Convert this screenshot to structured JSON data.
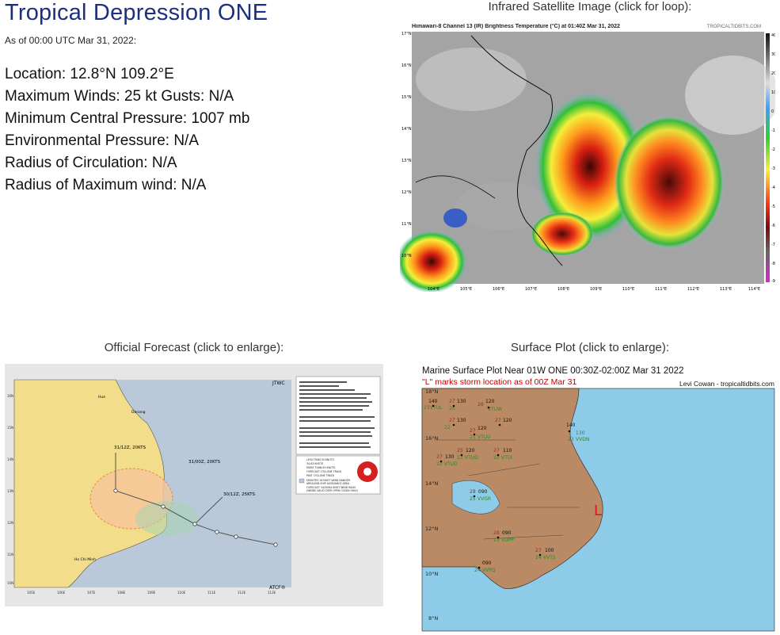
{
  "storm": {
    "title": "Tropical Depression ONE",
    "as_of": "As of 00:00 UTC Mar 31, 2022:",
    "location": "Location: 12.8°N 109.2°E",
    "max_winds": "Maximum Winds: 25 kt  Gusts: N/A",
    "min_pressure": "Minimum Central Pressure: 1007 mb",
    "env_pressure": "Environmental Pressure: N/A",
    "radius_circulation": "Radius of Circulation: N/A",
    "radius_max_wind": "Radius of Maximum wind: N/A"
  },
  "satellite": {
    "caption": "Infrared Satellite Image (click for loop):",
    "header": "Himawari-8 Channel 13 (IR) Brightness Temperature (°C) at 01:40Z Mar 31, 2022",
    "brand": "TROPICALTIDBITS.COM",
    "lat_labels": [
      "17°N",
      "16°N",
      "15°N",
      "14°N",
      "13°N",
      "12°N",
      "11°N",
      "10°N"
    ],
    "lon_labels": [
      "104°E",
      "105°E",
      "106°E",
      "107°E",
      "108°E",
      "109°E",
      "110°E",
      "111°E",
      "112°E",
      "113°E",
      "114°E"
    ],
    "scale_labels": [
      "40",
      "30",
      "20",
      "10",
      "0",
      "-10",
      "-20",
      "-30",
      "-40",
      "-50",
      "-60",
      "-70",
      "-80",
      "-90"
    ]
  },
  "forecast": {
    "caption": "Official Forecast (click to enlarge):",
    "agency_top": "JTWC",
    "agency_bottom": "ATCF®",
    "points": [
      "31/12Z, 20KTS",
      "31/00Z, 20KTS",
      "30/12Z, 25KTS"
    ],
    "places": [
      "Hue",
      "Danang",
      "Ho Chi Minh"
    ],
    "lat_labels": [
      "16N",
      "15N",
      "14N",
      "13N",
      "12N",
      "11N",
      "10N"
    ],
    "lon_labels": [
      "105E",
      "106E",
      "107E",
      "108E",
      "109E",
      "110E",
      "111E",
      "112E",
      "113E"
    ],
    "legend": [
      "LESS THAN 34 KNOTS",
      "34-63 KNOTS",
      "MORE THAN 63 KNOTS",
      "FORECAST CYCLONE TRACK",
      "PAST CYCLONE TRACK",
      "DENOTES 34 KNOT WIND DANGER AREA/USN SHIP AVOIDANCE AREA",
      "FORECAST 34/50/64 KNOT WIND RADII (WINDS VALID OVER OPEN OCEAN ONLY)"
    ]
  },
  "surface": {
    "caption": "Surface Plot (click to enlarge):",
    "title": "Marine Surface Plot Near 01W ONE 00:30Z-02:00Z Mar 31 2022",
    "subtitle": "\"L\" marks storm location as of 00Z Mar 31",
    "author": "Levi Cowan - tropicaltidbits.com",
    "storm_marker": "L",
    "lat_labels": [
      "18°N",
      "16°N",
      "14°N",
      "12°N",
      "10°N",
      "8°N"
    ],
    "stations": [
      {
        "temp": "27",
        "pres": "130",
        "dew": "20",
        "id": "VTUL"
      },
      {
        "temp": "26",
        "pres": "120",
        "dew": "22",
        "id": "VTUW"
      },
      {
        "temp": "27",
        "pres": "130",
        "dew": "22",
        "id": "VTUD"
      },
      {
        "temp": "27",
        "pres": "120",
        "dew": "21",
        "id": "VTUU"
      },
      {
        "temp": "25",
        "pres": "120",
        "dew": "22",
        "id": "VTUD"
      },
      {
        "temp": "27",
        "pres": "110",
        "dew": "22",
        "id": "VTUI"
      },
      {
        "temp": "",
        "pres": "140",
        "dew": "23",
        "id": "VVDN"
      },
      {
        "temp": "28",
        "pres": "090",
        "dew": "25",
        "id": "VVGR"
      },
      {
        "temp": "28",
        "pres": "090",
        "dew": "23",
        "id": "VDPP"
      },
      {
        "temp": "27",
        "pres": "100",
        "dew": "24",
        "id": "VVTS"
      },
      {
        "temp": "",
        "pres": "090",
        "dew": "24",
        "id": "VVPQ"
      }
    ]
  },
  "colors": {
    "title": "#1d2f7f",
    "land_forecast": "#f1dd8a",
    "sea_forecast": "#b9c9da",
    "land_surface": "#b98a63",
    "sea_surface": "#8ecbe8",
    "storm_marker": "#e0141e"
  }
}
